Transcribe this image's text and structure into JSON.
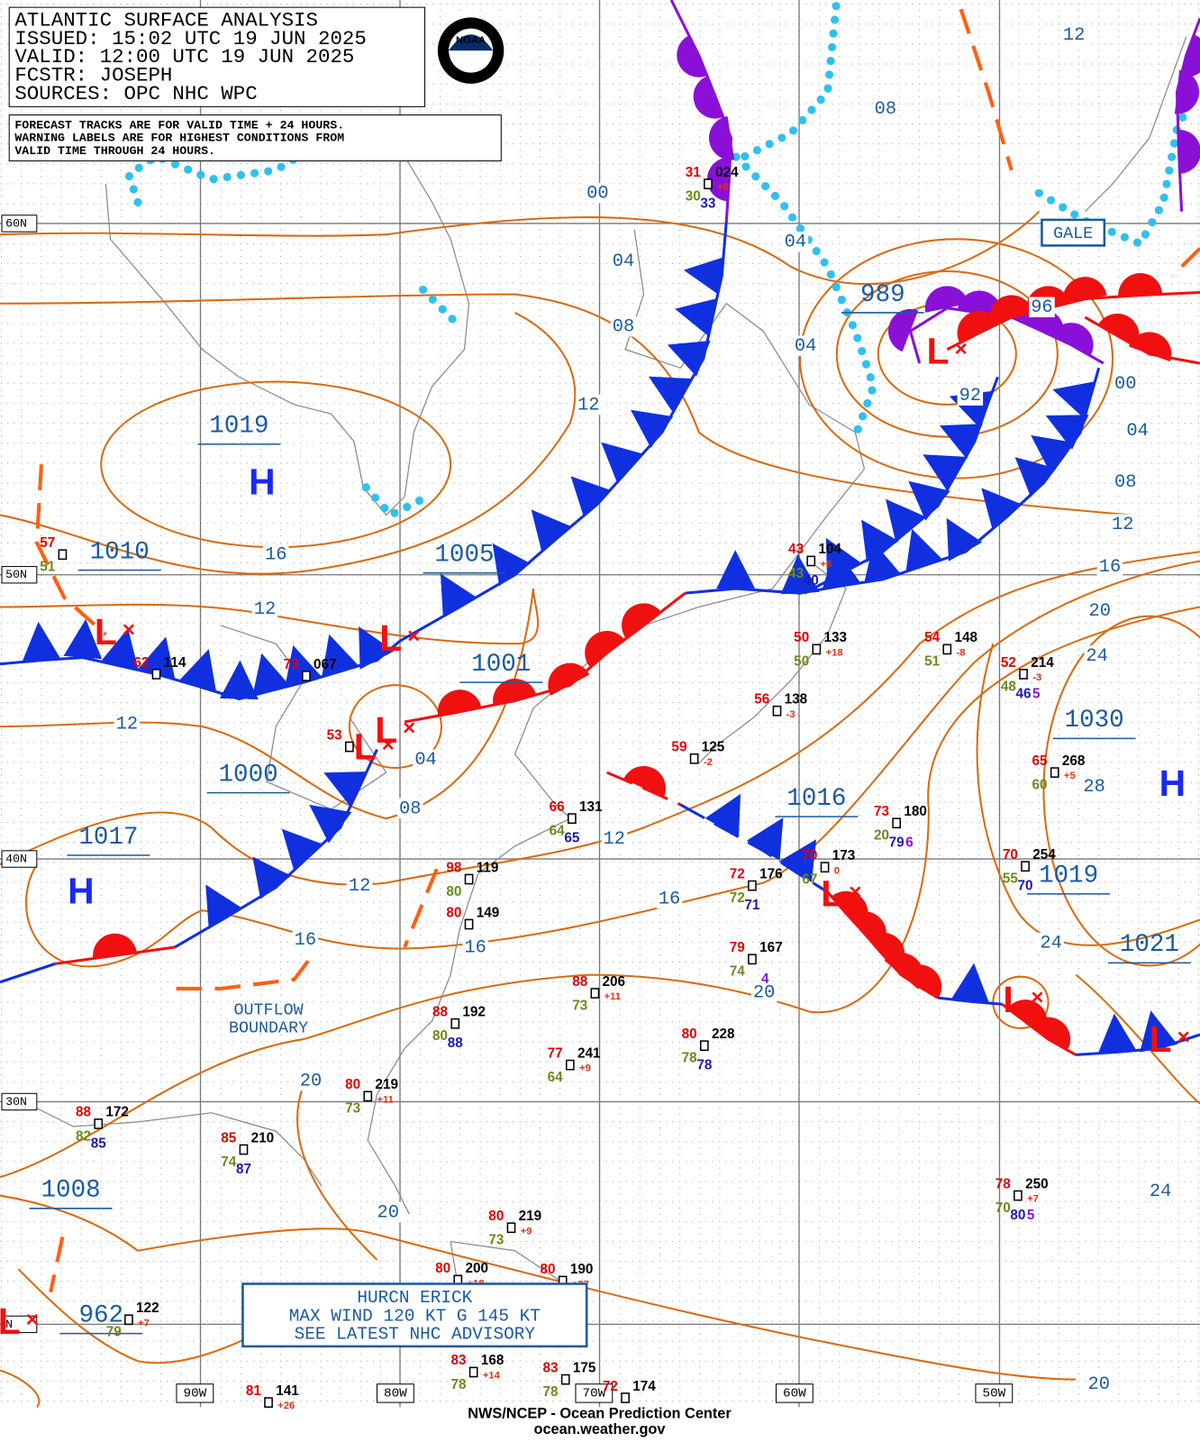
{
  "header": {
    "lines": [
      "ATLANTIC SURFACE ANALYSIS",
      "ISSUED: 15:02 UTC 19 JUN 2025",
      "VALID:  12:00 UTC 19 JUN 2025",
      "FCSTR:  JOSEPH",
      "SOURCES: OPC NHC WPC"
    ],
    "logo": "NOAA"
  },
  "notes": [
    "FORECAST TRACKS ARE FOR VALID TIME + 24 HOURS.",
    "WARNING LABELS ARE FOR HIGHEST CONDITIONS FROM",
    "VALID TIME THROUGH 24 HOURS."
  ],
  "latitude_labels": [
    "60N",
    "50N",
    "40N",
    "30N",
    "N"
  ],
  "longitude_labels": [
    "90W",
    "80W",
    "70W",
    "60W",
    "50W"
  ],
  "symbols": [
    "H",
    "L",
    "L",
    "L",
    "L",
    "H",
    "L",
    "L",
    "H",
    "L",
    "L",
    "L"
  ],
  "pressure_labels": [
    "1019",
    "1010",
    "1005",
    "1001",
    "1000",
    "1017",
    "989",
    "1016",
    "1030",
    "1019",
    "1021",
    "1008",
    "962"
  ],
  "isobar_labels": [
    "12",
    "08",
    "00",
    "04",
    "04",
    "08",
    "04",
    "12",
    "96",
    "92",
    "00",
    "04",
    "08",
    "12",
    "16",
    "20",
    "24",
    "28",
    "24",
    "16",
    "12",
    "12",
    "04",
    "08",
    "12",
    "12",
    "16",
    "16",
    "16",
    "20",
    "20",
    "20",
    "24",
    "20"
  ],
  "stations": [
    {
      "t": "31",
      "p": "024",
      "d": "30",
      "s": "33",
      "c": "+6"
    },
    {
      "t": "57",
      "d": "51"
    },
    {
      "t": "62",
      "p": "114"
    },
    {
      "t": "73",
      "p": "067"
    },
    {
      "t": "43",
      "p": "104",
      "d": "43",
      "s": "40",
      "c": "+8"
    },
    {
      "t": "50",
      "p": "133",
      "d": "50",
      "c": "+18"
    },
    {
      "t": "54",
      "p": "148",
      "d": "51",
      "c": "-8"
    },
    {
      "t": "52",
      "p": "214",
      "d": "48",
      "s": "46",
      "x": "5",
      "c": "-3"
    },
    {
      "t": "56",
      "p": "138",
      "c": "-3"
    },
    {
      "t": "59",
      "p": "125",
      "c": "-2"
    },
    {
      "t": "65",
      "p": "268",
      "d": "60",
      "c": "+5"
    },
    {
      "t": "66",
      "p": "131",
      "d": "64",
      "s": "65"
    },
    {
      "t": "73",
      "p": "180",
      "d": "20",
      "s": "79",
      "x": "6"
    },
    {
      "t": "70",
      "p": "173",
      "d": "67",
      "c": "0"
    },
    {
      "t": "72",
      "p": "176",
      "d": "72",
      "s": "71"
    },
    {
      "t": "98",
      "p": "119",
      "d": "80"
    },
    {
      "t": "80",
      "p": "149"
    },
    {
      "t": "79",
      "p": "167",
      "d": "74",
      "x": "4"
    },
    {
      "t": "88",
      "p": "206",
      "d": "73",
      "c": "+11"
    },
    {
      "t": "88",
      "p": "192",
      "d": "80",
      "s": "88"
    },
    {
      "t": "80",
      "p": "228",
      "d": "78",
      "s": "78"
    },
    {
      "t": "77",
      "p": "241",
      "d": "64",
      "c": "+9"
    },
    {
      "t": "80",
      "p": "219",
      "d": "73",
      "c": "+11"
    },
    {
      "t": "88",
      "p": "172",
      "d": "82",
      "s": "85"
    },
    {
      "t": "85",
      "p": "210",
      "d": "74",
      "s": "87"
    },
    {
      "t": "80",
      "p": "219",
      "d": "73",
      "c": "+9"
    },
    {
      "t": "80",
      "p": "200",
      "c": "+18"
    },
    {
      "t": "78",
      "p": "250",
      "d": "70",
      "s": "80",
      "x": "5",
      "c": "+7"
    },
    {
      "t": "70",
      "p": "254",
      "d": "55",
      "s": "70"
    },
    {
      "t": "80",
      "p": "190",
      "c": "+27"
    },
    {
      "p": "122",
      "d": "79",
      "c": "+7"
    },
    {
      "t": "83",
      "p": "168",
      "d": "78",
      "c": "+14"
    },
    {
      "t": "83",
      "p": "175",
      "d": "78"
    },
    {
      "t": "81",
      "p": "141",
      "c": "+26"
    },
    {
      "t": "72",
      "p": "174"
    },
    {
      "t": "53"
    }
  ],
  "warning": "GALE",
  "hurricane": [
    "HURCN ERICK",
    "MAX WIND 120 KT G 145 KT",
    "SEE LATEST NHC ADVISORY"
  ],
  "outflow": [
    "OUTFLOW",
    "BOUNDARY"
  ],
  "footer": [
    "NWS/NCEP - Ocean Prediction Center",
    "ocean.weather.gov"
  ]
}
